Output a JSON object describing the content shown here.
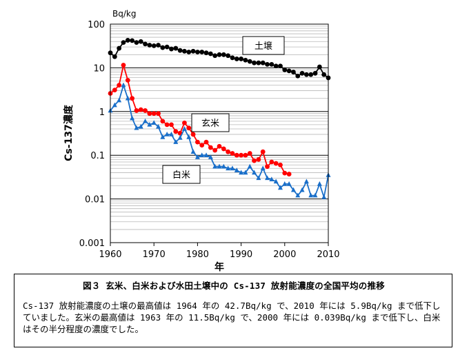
{
  "chart_data": {
    "type": "line",
    "unit_label": "Bq/kg",
    "xlabel": "年",
    "ylabel": "Cs-137濃度",
    "xlim": [
      1960,
      2010
    ],
    "ylim": [
      0.001,
      100
    ],
    "yscale": "log",
    "x_ticks": [
      "1960",
      "1970",
      "1980",
      "1990",
      "2000",
      "2010"
    ],
    "y_ticks": [
      "100",
      "10",
      "1",
      "0.1",
      "0.01",
      "0.001"
    ],
    "grid": "horizontal minor lines",
    "series": [
      {
        "name": "土壌",
        "color": "#000000",
        "marker": "circle",
        "points": [
          [
            1960,
            22
          ],
          [
            1961,
            18
          ],
          [
            1962,
            28
          ],
          [
            1963,
            38
          ],
          [
            1964,
            42.7
          ],
          [
            1965,
            42
          ],
          [
            1966,
            38
          ],
          [
            1967,
            40
          ],
          [
            1968,
            35
          ],
          [
            1969,
            33
          ],
          [
            1970,
            32
          ],
          [
            1971,
            33
          ],
          [
            1972,
            29
          ],
          [
            1973,
            30
          ],
          [
            1974,
            27
          ],
          [
            1975,
            28
          ],
          [
            1976,
            25
          ],
          [
            1977,
            24
          ],
          [
            1978,
            23
          ],
          [
            1979,
            24
          ],
          [
            1980,
            23
          ],
          [
            1981,
            23
          ],
          [
            1982,
            22
          ],
          [
            1983,
            21
          ],
          [
            1984,
            19
          ],
          [
            1985,
            20
          ],
          [
            1986,
            20
          ],
          [
            1987,
            19
          ],
          [
            1988,
            17
          ],
          [
            1989,
            16
          ],
          [
            1990,
            16
          ],
          [
            1991,
            15
          ],
          [
            1992,
            14
          ],
          [
            1993,
            13
          ],
          [
            1994,
            13
          ],
          [
            1995,
            13
          ],
          [
            1996,
            12
          ],
          [
            1997,
            12
          ],
          [
            1998,
            11
          ],
          [
            1999,
            11
          ],
          [
            2000,
            9
          ],
          [
            2001,
            8.5
          ],
          [
            2002,
            8
          ],
          [
            2003,
            6.5
          ],
          [
            2004,
            7.5
          ],
          [
            2005,
            7
          ],
          [
            2006,
            7
          ],
          [
            2007,
            7.5
          ],
          [
            2008,
            10.5
          ],
          [
            2009,
            7
          ],
          [
            2010,
            5.9
          ]
        ]
      },
      {
        "name": "玄米",
        "color": "#ff0000",
        "marker": "circle",
        "points": [
          [
            1960,
            2.6
          ],
          [
            1961,
            3.1
          ],
          [
            1962,
            4
          ],
          [
            1963,
            11.5
          ],
          [
            1964,
            5.2
          ],
          [
            1965,
            2
          ],
          [
            1966,
            1.05
          ],
          [
            1967,
            1.1
          ],
          [
            1968,
            1.05
          ],
          [
            1969,
            0.9
          ],
          [
            1970,
            0.9
          ],
          [
            1971,
            0.9
          ],
          [
            1972,
            0.6
          ],
          [
            1973,
            0.5
          ],
          [
            1974,
            0.5
          ],
          [
            1975,
            0.35
          ],
          [
            1976,
            0.32
          ],
          [
            1977,
            0.55
          ],
          [
            1978,
            0.42
          ],
          [
            1979,
            0.3
          ],
          [
            1980,
            0.2
          ],
          [
            1981,
            0.17
          ],
          [
            1982,
            0.2
          ],
          [
            1983,
            0.15
          ],
          [
            1984,
            0.13
          ],
          [
            1985,
            0.16
          ],
          [
            1986,
            0.14
          ],
          [
            1987,
            0.12
          ],
          [
            1988,
            0.11
          ],
          [
            1989,
            0.1
          ],
          [
            1990,
            0.1
          ],
          [
            1991,
            0.1
          ],
          [
            1992,
            0.11
          ],
          [
            1993,
            0.075
          ],
          [
            1994,
            0.08
          ],
          [
            1995,
            0.12
          ],
          [
            1996,
            0.055
          ],
          [
            1997,
            0.07
          ],
          [
            1998,
            0.065
          ],
          [
            1999,
            0.06
          ],
          [
            2000,
            0.039
          ],
          [
            2001,
            0.037
          ]
        ]
      },
      {
        "name": "白米",
        "color": "#1a6fc9",
        "marker": "triangle",
        "points": [
          [
            1960,
            1.05
          ],
          [
            1961,
            1.4
          ],
          [
            1962,
            1.8
          ],
          [
            1963,
            4
          ],
          [
            1964,
            2
          ],
          [
            1965,
            0.7
          ],
          [
            1966,
            0.42
          ],
          [
            1967,
            0.45
          ],
          [
            1968,
            0.6
          ],
          [
            1969,
            0.5
          ],
          [
            1970,
            0.55
          ],
          [
            1971,
            0.45
          ],
          [
            1972,
            0.26
          ],
          [
            1973,
            0.3
          ],
          [
            1974,
            0.3
          ],
          [
            1975,
            0.2
          ],
          [
            1976,
            0.25
          ],
          [
            1977,
            0.4
          ],
          [
            1978,
            0.26
          ],
          [
            1979,
            0.12
          ],
          [
            1980,
            0.09
          ],
          [
            1981,
            0.1
          ],
          [
            1982,
            0.1
          ],
          [
            1983,
            0.09
          ],
          [
            1984,
            0.055
          ],
          [
            1985,
            0.055
          ],
          [
            1986,
            0.055
          ],
          [
            1987,
            0.05
          ],
          [
            1988,
            0.05
          ],
          [
            1989,
            0.045
          ],
          [
            1990,
            0.04
          ],
          [
            1991,
            0.04
          ],
          [
            1992,
            0.055
          ],
          [
            1993,
            0.04
          ],
          [
            1994,
            0.03
          ],
          [
            1995,
            0.05
          ],
          [
            1996,
            0.03
          ],
          [
            1997,
            0.028
          ],
          [
            1998,
            0.025
          ],
          [
            1999,
            0.018
          ],
          [
            2000,
            0.022
          ],
          [
            2001,
            0.022
          ],
          [
            2002,
            0.016
          ],
          [
            2003,
            0.012
          ],
          [
            2004,
            0.016
          ],
          [
            2005,
            0.025
          ],
          [
            2006,
            0.012
          ],
          [
            2007,
            0.012
          ],
          [
            2008,
            0.022
          ],
          [
            2009,
            0.011
          ],
          [
            2010,
            0.035
          ]
        ]
      }
    ],
    "annotations": [
      {
        "text": "土壌",
        "series": "土壌"
      },
      {
        "text": "玄米",
        "series": "玄米"
      },
      {
        "text": "白米",
        "series": "白米"
      }
    ]
  },
  "caption": {
    "title": "図３ 玄米、白米および水田土壌中の Cs-137 放射能濃度の全国平均の推移",
    "text": "Cs-137 放射能濃度の土壌の最高値は 1964 年の 42.7Bq/kg で、2010 年には 5.9Bq/kg まで低下していました。玄米の最高値は 1963 年の 11.5Bq/kg で、2000 年には 0.039Bq/kg まで低下し、白米はその半分程度の濃度でした。"
  }
}
